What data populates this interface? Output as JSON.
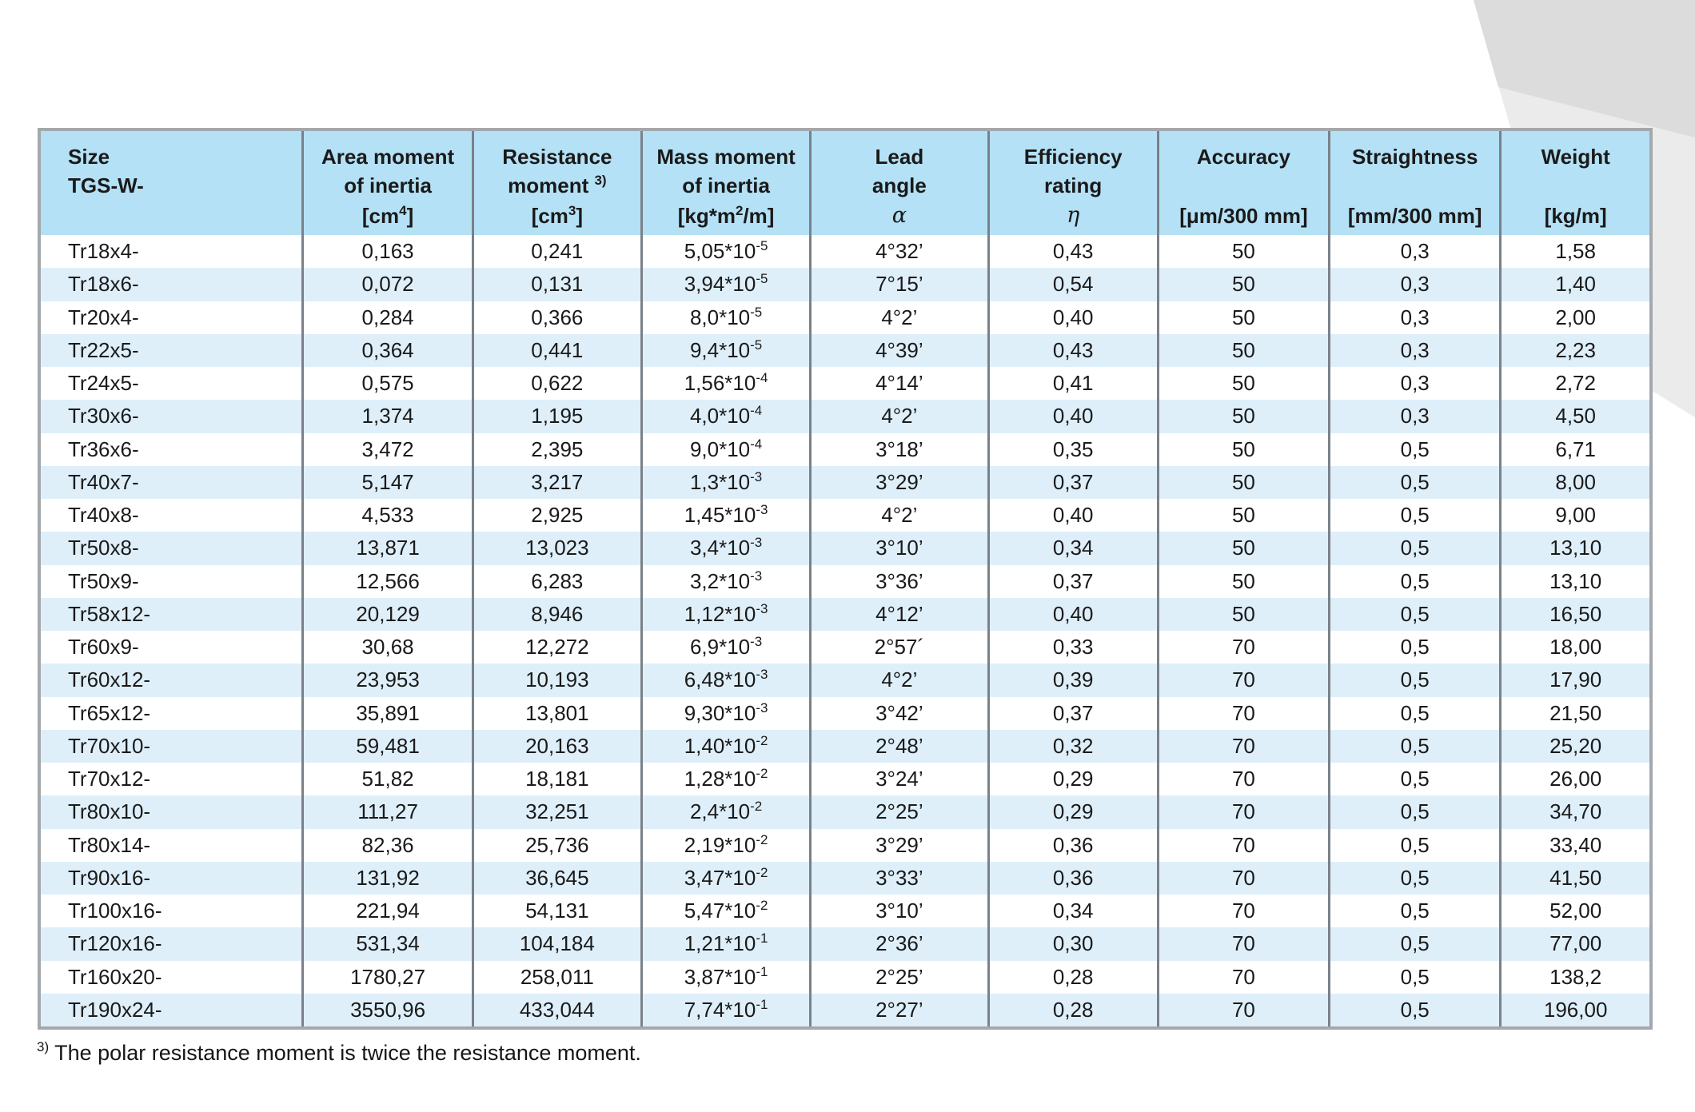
{
  "page": {
    "background_color": "#ffffff",
    "wedge_light_color": "#ebebeb",
    "wedge_dark_color": "#dcdcdc"
  },
  "table": {
    "border_color": "#a4a8ac",
    "separator_color": "#7a8188",
    "header_bg": "#b4e1f5",
    "row_bg_white": "#ffffff",
    "row_bg_blue": "#deeffa",
    "columns": [
      {
        "id": "size",
        "line1": "Size",
        "line2": "TGS-W-",
        "unit": "",
        "greek": false
      },
      {
        "id": "area",
        "line1": "Area moment",
        "line2": "of inertia",
        "unit": "[cm^{4}]",
        "greek": false
      },
      {
        "id": "resistance",
        "line1": "Resistance",
        "line2": "moment ^{3)}",
        "unit": "[cm^{3}]",
        "greek": false
      },
      {
        "id": "mass",
        "line1": "Mass moment",
        "line2": "of inertia",
        "unit": "[kg*m^{2}/m]",
        "greek": false
      },
      {
        "id": "lead",
        "line1": "Lead",
        "line2": "angle",
        "unit": "α",
        "greek": true
      },
      {
        "id": "efficiency",
        "line1": "Efficiency",
        "line2": "rating",
        "unit": "η",
        "greek": true
      },
      {
        "id": "accuracy",
        "line1": "Accuracy",
        "line2": "",
        "unit": "[μm/300 mm]",
        "greek": false
      },
      {
        "id": "straightness",
        "line1": "Straightness",
        "line2": "",
        "unit": "[mm/300 mm]",
        "greek": false
      },
      {
        "id": "weight",
        "line1": "Weight",
        "line2": "",
        "unit": "[kg/m]",
        "greek": false
      }
    ],
    "rows": [
      [
        "Tr18x4-",
        "0,163",
        "0,241",
        "5,05*10^{-5}",
        "4°32’",
        "0,43",
        "50",
        "0,3",
        "1,58"
      ],
      [
        "Tr18x6-",
        "0,072",
        "0,131",
        "3,94*10^{-5}",
        "7°15’",
        "0,54",
        "50",
        "0,3",
        "1,40"
      ],
      [
        "Tr20x4-",
        "0,284",
        "0,366",
        "8,0*10^{-5}",
        "4°2’",
        "0,40",
        "50",
        "0,3",
        "2,00"
      ],
      [
        "Tr22x5-",
        "0,364",
        "0,441",
        "9,4*10^{-5}",
        "4°39’",
        "0,43",
        "50",
        "0,3",
        "2,23"
      ],
      [
        "Tr24x5-",
        "0,575",
        "0,622",
        "1,56*10^{-4}",
        "4°14’",
        "0,41",
        "50",
        "0,3",
        "2,72"
      ],
      [
        "Tr30x6-",
        "1,374",
        "1,195",
        "4,0*10^{-4}",
        "4°2’",
        "0,40",
        "50",
        "0,3",
        "4,50"
      ],
      [
        "Tr36x6-",
        "3,472",
        "2,395",
        "9,0*10^{-4}",
        "3°18’",
        "0,35",
        "50",
        "0,5",
        "6,71"
      ],
      [
        "Tr40x7-",
        "5,147",
        "3,217",
        "1,3*10^{-3}",
        "3°29’",
        "0,37",
        "50",
        "0,5",
        "8,00"
      ],
      [
        "Tr40x8-",
        "4,533",
        "2,925",
        "1,45*10^{-3}",
        "4°2’",
        "0,40",
        "50",
        "0,5",
        "9,00"
      ],
      [
        "Tr50x8-",
        "13,871",
        "13,023",
        "3,4*10^{-3}",
        "3°10’",
        "0,34",
        "50",
        "0,5",
        "13,10"
      ],
      [
        "Tr50x9-",
        "12,566",
        "6,283",
        "3,2*10^{-3}",
        "3°36’",
        "0,37",
        "50",
        "0,5",
        "13,10"
      ],
      [
        "Tr58x12-",
        "20,129",
        "8,946",
        "1,12*10^{-3}",
        "4°12’",
        "0,40",
        "50",
        "0,5",
        "16,50"
      ],
      [
        "Tr60x9-",
        "30,68",
        "12,272",
        "6,9*10^{-3}",
        "2°57´",
        "0,33",
        "70",
        "0,5",
        "18,00"
      ],
      [
        "Tr60x12-",
        "23,953",
        "10,193",
        "6,48*10^{-3}",
        "4°2’",
        "0,39",
        "70",
        "0,5",
        "17,90"
      ],
      [
        "Tr65x12-",
        "35,891",
        "13,801",
        "9,30*10^{-3}",
        "3°42’",
        "0,37",
        "70",
        "0,5",
        "21,50"
      ],
      [
        "Tr70x10-",
        "59,481",
        "20,163",
        "1,40*10^{-2}",
        "2°48’",
        "0,32",
        "70",
        "0,5",
        "25,20"
      ],
      [
        "Tr70x12-",
        "51,82",
        "18,181",
        "1,28*10^{-2}",
        "3°24’",
        "0,29",
        "70",
        "0,5",
        "26,00"
      ],
      [
        "Tr80x10-",
        "111,27",
        "32,251",
        "2,4*10^{-2}",
        "2°25’",
        "0,29",
        "70",
        "0,5",
        "34,70"
      ],
      [
        "Tr80x14-",
        "82,36",
        "25,736",
        "2,19*10^{-2}",
        "3°29’",
        "0,36",
        "70",
        "0,5",
        "33,40"
      ],
      [
        "Tr90x16-",
        "131,92",
        "36,645",
        "3,47*10^{-2}",
        "3°33’",
        "0,36",
        "70",
        "0,5",
        "41,50"
      ],
      [
        "Tr100x16-",
        "221,94",
        "54,131",
        "5,47*10^{-2}",
        "3°10’",
        "0,34",
        "70",
        "0,5",
        "52,00"
      ],
      [
        "Tr120x16-",
        "531,34",
        "104,184",
        "1,21*10^{-1}",
        "2°36’",
        "0,30",
        "70",
        "0,5",
        "77,00"
      ],
      [
        "Tr160x20-",
        "1780,27",
        "258,011",
        "3,87*10^{-1}",
        "2°25’",
        "0,28",
        "70",
        "0,5",
        "138,2"
      ],
      [
        "Tr190x24-",
        "3550,96",
        "433,044",
        "7,74*10^{-1}",
        "2°27’",
        "0,28",
        "70",
        "0,5",
        "196,00"
      ]
    ]
  },
  "footnote": {
    "text": "^{3)} The polar resistance moment is twice the resistance moment."
  }
}
